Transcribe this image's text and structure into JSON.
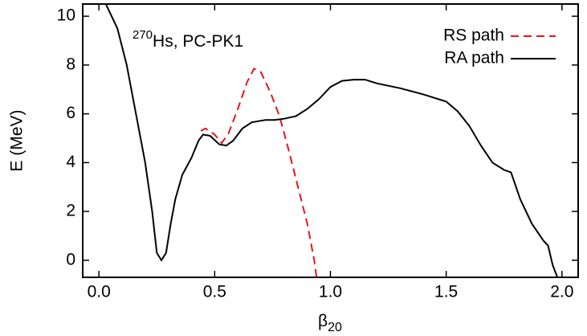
{
  "chart_data": {
    "type": "line",
    "annotation": {
      "superscript": "270",
      "text": "Hs, PC-PK1"
    },
    "xlabel": {
      "text": "β",
      "subscript": "20"
    },
    "ylabel": "E (MeV)",
    "xlim": [
      -0.07,
      2.07
    ],
    "ylim": [
      -0.7,
      10.5
    ],
    "xticks": [
      {
        "value": 0,
        "label": "0.0"
      },
      0.5,
      {
        "value": 1,
        "label": "1.0"
      },
      1.5,
      {
        "value": 2,
        "label": "2.0"
      }
    ],
    "yticks": [
      0,
      2,
      4,
      6,
      8,
      10
    ],
    "legend": "upper right",
    "series": [
      {
        "name": "RS path",
        "color": "#e8141c",
        "dash": true,
        "x": [
          0.44,
          0.46,
          0.5,
          0.53,
          0.56,
          0.6,
          0.64,
          0.67,
          0.7,
          0.74,
          0.78,
          0.82,
          0.86,
          0.9,
          0.93,
          0.94
        ],
        "values": [
          5.3,
          5.4,
          5.15,
          4.8,
          5.2,
          6.2,
          7.3,
          7.85,
          7.7,
          6.9,
          5.9,
          4.5,
          3,
          1.5,
          0,
          -0.7
        ]
      },
      {
        "name": "RA path",
        "color": "#000000",
        "dash": false,
        "x": [
          0.03,
          0.08,
          0.12,
          0.16,
          0.2,
          0.23,
          0.25,
          0.27,
          0.29,
          0.31,
          0.33,
          0.36,
          0.4,
          0.43,
          0.45,
          0.48,
          0.52,
          0.55,
          0.58,
          0.62,
          0.66,
          0.72,
          0.76,
          0.8,
          0.85,
          0.9,
          0.95,
          1.0,
          1.05,
          1.1,
          1.15,
          1.2,
          1.3,
          1.4,
          1.5,
          1.55,
          1.6,
          1.65,
          1.7,
          1.75,
          1.78,
          1.82,
          1.87,
          1.92,
          1.94,
          1.96,
          1.98
        ],
        "values": [
          10.5,
          9.5,
          8,
          6,
          4,
          2,
          0.3,
          0,
          0.3,
          1.5,
          2.5,
          3.5,
          4.2,
          4.9,
          5.15,
          5.1,
          4.75,
          4.7,
          4.9,
          5.4,
          5.65,
          5.75,
          5.75,
          5.8,
          5.9,
          6.2,
          6.6,
          7.1,
          7.35,
          7.4,
          7.4,
          7.25,
          7.05,
          6.8,
          6.5,
          6.1,
          5.5,
          4.7,
          4,
          3.7,
          3.6,
          2.5,
          1.5,
          0.8,
          0.6,
          -0.2,
          -0.7
        ]
      }
    ]
  }
}
